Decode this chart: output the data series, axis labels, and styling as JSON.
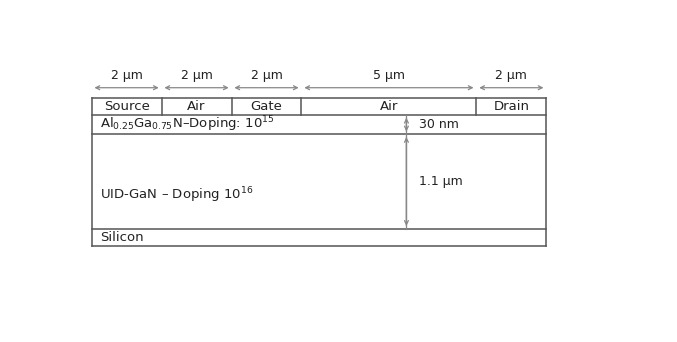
{
  "fig_width": 6.77,
  "fig_height": 3.42,
  "dpi": 100,
  "bg_color": "#ffffff",
  "line_color": "#555555",
  "arrow_color": "#888888",
  "dim_arrow_color": "#888888",
  "sections_widths": [
    2,
    2,
    2,
    5,
    2
  ],
  "sections_labels": [
    "Source",
    "Air",
    "Gate",
    "Air",
    "Drain"
  ],
  "dim_labels": [
    "2 μm",
    "2 μm",
    "2 μm",
    "5 μm",
    "2 μm"
  ],
  "font_size_label": 9.5,
  "font_size_dim": 9.0,
  "font_size_layer": 9.5,
  "algan_label": "Al$_{0.25}$Ga$_{0.75}$N–Doping: 10$^{15}$",
  "gan_label": "UID-GaN – Doping 10$^{16}$",
  "si_label": "Silicon",
  "algan_dim_label": "30 nm",
  "gan_dim_label": "1.1 μm"
}
